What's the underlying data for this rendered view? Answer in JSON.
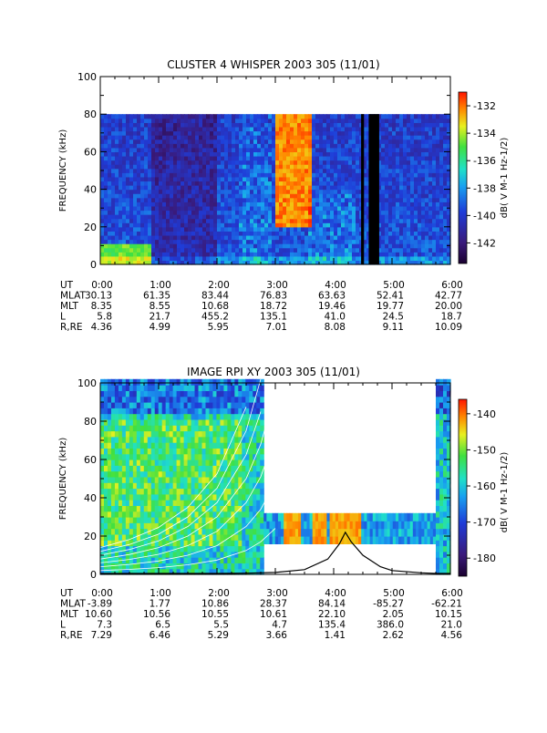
{
  "chart_data": [
    {
      "type": "heatmap",
      "title": "CLUSTER 4 WHISPER 2003 305 (11/01)",
      "ylabel": "FREQUENCY (kHz)",
      "ylim": [
        0,
        100
      ],
      "yticks": [
        "0",
        "20",
        "40",
        "60",
        "80",
        "100"
      ],
      "xlim_hours": [
        0,
        6
      ],
      "colorbar": {
        "label": "dB( V M-1 Hz-1/2)",
        "range": [
          -143.5,
          -131
        ],
        "ticks": [
          "-132",
          "-134",
          "-136",
          "-138",
          "-140",
          "-142"
        ],
        "tick_values": [
          -132,
          -134,
          -136,
          -138,
          -140,
          -142
        ]
      },
      "data_cutoff_khz": 80,
      "data_gaps": [
        [
          4.47,
          4.52
        ],
        [
          4.6,
          4.78
        ]
      ],
      "features": [
        {
          "name": "strong emission (red)",
          "t_start": 3.0,
          "t_end": 3.6,
          "f_low_khz": 20,
          "f_high_khz": 80,
          "level_db": -131.5
        },
        {
          "name": "low-frequency emission",
          "t_start": 0.0,
          "t_end": 0.9,
          "f_low_khz": 0,
          "f_high_khz": 12,
          "level_db": -134
        }
      ],
      "ephemeris": {
        "rows": [
          {
            "label": "UT",
            "values": [
              "0:00",
              "1:00",
              "2:00",
              "3:00",
              "4:00",
              "5:00",
              "6:00"
            ]
          },
          {
            "label": "MLAT",
            "values": [
              "30.13",
              "61.35",
              "83.44",
              "76.83",
              "63.63",
              "52.41",
              "42.77"
            ]
          },
          {
            "label": "MLT",
            "values": [
              "8.35",
              "8.55",
              "10.68",
              "18.72",
              "19.46",
              "19.77",
              "20.00"
            ]
          },
          {
            "label": "L",
            "values": [
              "5.8",
              "21.7",
              "455.2",
              "135.1",
              "41.0",
              "24.5",
              "18.7"
            ]
          },
          {
            "label": "R,RE",
            "values": [
              "4.36",
              "4.99",
              "5.95",
              "7.01",
              "8.08",
              "9.11",
              "10.09"
            ]
          }
        ]
      }
    },
    {
      "type": "heatmap",
      "title": "IMAGE RPI XY 2003 305 (11/01)",
      "ylabel": "FREQUENCY (kHz)",
      "ylim": [
        0,
        100
      ],
      "yticks": [
        "0",
        "20",
        "40",
        "60",
        "80",
        "100"
      ],
      "xlim_hours": [
        0,
        6
      ],
      "colorbar": {
        "label": "dB( V M-1 Hz-1/2)",
        "range": [
          -185,
          -136
        ],
        "ticks": [
          "-140",
          "-150",
          "-160",
          "-170",
          "-180"
        ],
        "tick_values": [
          -140,
          -150,
          -160,
          -170,
          -180
        ]
      },
      "data_blocks": [
        {
          "t_start": 0.0,
          "t_end": 2.8,
          "f_low_khz": 0,
          "f_high_khz": 102
        },
        {
          "t_start": 2.8,
          "t_end": 5.75,
          "f_low_khz": 16,
          "f_high_khz": 32
        },
        {
          "t_start": 5.75,
          "t_end": 6.0,
          "f_low_khz": 0,
          "f_high_khz": 102
        }
      ],
      "plasma_frequency_curve": {
        "t_hours": [
          0.0,
          1.0,
          2.0,
          2.5,
          3.0,
          3.5,
          3.9,
          4.1,
          4.2,
          4.3,
          4.5,
          4.8,
          5.0,
          5.5,
          5.75,
          6.0
        ],
        "f_khz": [
          0.5,
          0.5,
          0.5,
          0.6,
          1.0,
          2.5,
          8.0,
          16.0,
          22.0,
          17.0,
          10.0,
          4.0,
          2.0,
          0.8,
          0.5,
          0.5
        ]
      },
      "gyrofrequency_curves": {
        "t_hours": [
          0.0,
          0.5,
          1.0,
          1.5,
          2.0,
          2.5,
          2.75,
          3.0
        ],
        "f_khz": [
          2.0,
          2.6,
          3.5,
          5.0,
          7.5,
          12.5,
          17.0,
          24.0
        ],
        "harmonics": [
          1,
          2,
          3,
          4,
          5,
          6,
          7
        ]
      },
      "ephemeris": {
        "rows": [
          {
            "label": "UT",
            "values": [
              "0:00",
              "1:00",
              "2:00",
              "3:00",
              "4:00",
              "5:00",
              "6:00"
            ]
          },
          {
            "label": "MLAT",
            "values": [
              "-3.89",
              "1.77",
              "10.86",
              "28.37",
              "84.14",
              "-85.27",
              "-62.21"
            ]
          },
          {
            "label": "MLT",
            "values": [
              "10.60",
              "10.56",
              "10.55",
              "10.61",
              "22.10",
              "2.05",
              "10.15"
            ]
          },
          {
            "label": "L",
            "values": [
              "7.3",
              "6.5",
              "5.5",
              "4.7",
              "135.4",
              "386.0",
              "21.0"
            ]
          },
          {
            "label": "R,RE",
            "values": [
              "7.29",
              "6.46",
              "5.29",
              "3.66",
              "1.41",
              "2.62",
              "4.56"
            ]
          }
        ]
      }
    }
  ]
}
